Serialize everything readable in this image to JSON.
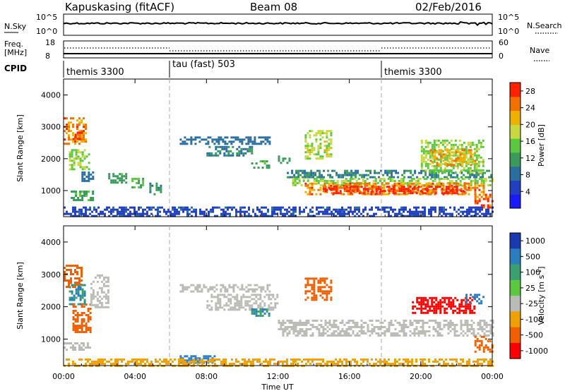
{
  "header": {
    "station": "Kapuskasing (fitACF)",
    "beam": "Beam 08",
    "date": "02/Feb/2016"
  },
  "top_panels": {
    "nsky_label": "N.Sky",
    "nsky_ticks": [
      "10^5",
      "10^0"
    ],
    "nsearch_label": "N.Search",
    "nsearch_ticks": [
      "10^5",
      "10^0"
    ],
    "freq_label": "Freq.",
    "freq_unit": "[MHz]",
    "freq_ticks": [
      "18",
      "8"
    ],
    "nave_label": "Nave",
    "nave_ticks": [
      "60",
      "0"
    ],
    "cpid_label": "CPID",
    "cpid_segments": [
      {
        "label": "themis 3300",
        "start_hour": 0,
        "end_hour": 6
      },
      {
        "label": "tau (fast) 503",
        "start_hour": 6,
        "end_hour": 18
      },
      {
        "label": "themis 3300",
        "start_hour": 18,
        "end_hour": 24
      }
    ]
  },
  "colors": {
    "power_scale": [
      "#1a1aff",
      "#2040c0",
      "#2a6ea0",
      "#3a9a5a",
      "#5cc840",
      "#c8d840",
      "#f0b000",
      "#f07000",
      "#ff2000"
    ],
    "velocity_scale": [
      "#1a3ab0",
      "#2a7ec0",
      "#3aa070",
      "#5cc840",
      "#bbbbb5",
      "#f0a000",
      "#f06000",
      "#ff0000"
    ],
    "ground_scatter": "#bbbbb5"
  },
  "chart_data": [
    {
      "type": "heatmap",
      "name": "power",
      "ylabel": "Slant Range [km]",
      "xlabel": "Time UT",
      "xlim": [
        0,
        24
      ],
      "ylim": [
        180,
        4500
      ],
      "yticks": [
        "1000",
        "2000",
        "3000",
        "4000"
      ],
      "xticks": [
        "00:00",
        "04:00",
        "08:00",
        "12:00",
        "16:00",
        "20:00",
        "00:00"
      ],
      "colorbar": {
        "label": "Power [dB]",
        "ticks": [
          "4",
          "8",
          "12",
          "16",
          "20",
          "24",
          "28"
        ],
        "range": [
          0,
          30
        ]
      },
      "patches": [
        {
          "t": [
            0.0,
            1.2
          ],
          "r": [
            2500,
            3300
          ],
          "value": 24
        },
        {
          "t": [
            0.5,
            1.0
          ],
          "r": [
            2650,
            2850
          ],
          "value": 28
        },
        {
          "t": [
            0.3,
            1.4
          ],
          "r": [
            1700,
            2300
          ],
          "value": 16
        },
        {
          "t": [
            0.4,
            1.6
          ],
          "r": [
            700,
            1000
          ],
          "value": 12
        },
        {
          "t": [
            1.0,
            1.6
          ],
          "r": [
            1300,
            1600
          ],
          "value": 8
        },
        {
          "t": [
            2.5,
            3.5
          ],
          "r": [
            1250,
            1550
          ],
          "value": 12
        },
        {
          "t": [
            3.8,
            4.5
          ],
          "r": [
            1100,
            1400
          ],
          "value": 14
        },
        {
          "t": [
            4.8,
            5.5
          ],
          "r": [
            900,
            1250
          ],
          "value": 10
        },
        {
          "t": [
            6.5,
            11.5
          ],
          "r": [
            2450,
            2700
          ],
          "value": 8
        },
        {
          "t": [
            8.0,
            10.5
          ],
          "r": [
            2100,
            2400
          ],
          "value": 10
        },
        {
          "t": [
            10.5,
            11.5
          ],
          "r": [
            1750,
            1950
          ],
          "value": 12
        },
        {
          "t": [
            12.0,
            12.6
          ],
          "r": [
            1900,
            2100
          ],
          "value": 12
        },
        {
          "t": [
            12.5,
            24.0
          ],
          "r": [
            1400,
            1650
          ],
          "value": 10
        },
        {
          "t": [
            12.8,
            24.0
          ],
          "r": [
            1150,
            1400
          ],
          "value": 16
        },
        {
          "t": [
            13.5,
            23.5
          ],
          "r": [
            900,
            1250
          ],
          "value": 24
        },
        {
          "t": [
            14.5,
            22.5
          ],
          "r": [
            950,
            1150
          ],
          "value": 28
        },
        {
          "t": [
            13.5,
            15.0
          ],
          "r": [
            2000,
            2900
          ],
          "value": 18
        },
        {
          "t": [
            20.0,
            23.5
          ],
          "r": [
            1600,
            2600
          ],
          "value": 16
        },
        {
          "t": [
            20.5,
            23.0
          ],
          "r": [
            1800,
            2300
          ],
          "value": 22
        },
        {
          "t": [
            23.0,
            24.0
          ],
          "r": [
            500,
            900
          ],
          "value": 26
        },
        {
          "t": [
            0.0,
            24.0
          ],
          "r": [
            200,
            500
          ],
          "value": 6
        }
      ]
    },
    {
      "type": "heatmap",
      "name": "velocity",
      "ylabel": "Slant Range [km]",
      "xlabel": "Time UT",
      "xlim": [
        0,
        24
      ],
      "ylim": [
        180,
        4500
      ],
      "yticks": [
        "1000",
        "2000",
        "3000",
        "4000"
      ],
      "xticks": [
        "00:00",
        "04:00",
        "08:00",
        "12:00",
        "16:00",
        "20:00",
        "00:00"
      ],
      "colorbar": {
        "label": "Velocity [m s",
        "label_sup": "-1",
        "ticks": [
          "1000",
          "500",
          "100",
          "25",
          "-25",
          "-100",
          "-500",
          "-1000"
        ]
      },
      "patches": [
        {
          "t": [
            0.0,
            1.0
          ],
          "r": [
            2600,
            3300
          ],
          "value": -200
        },
        {
          "t": [
            0.3,
            1.2
          ],
          "r": [
            2100,
            2700
          ],
          "value": 100
        },
        {
          "t": [
            0.5,
            1.5
          ],
          "r": [
            1200,
            2100
          ],
          "value": -300
        },
        {
          "t": [
            0.0,
            1.5
          ],
          "r": [
            700,
            900
          ],
          "value": 0
        },
        {
          "t": [
            1.5,
            2.5
          ],
          "r": [
            2000,
            3000
          ],
          "value": 0
        },
        {
          "t": [
            6.5,
            11.5
          ],
          "r": [
            2450,
            2700
          ],
          "value": 0
        },
        {
          "t": [
            8.0,
            12.0
          ],
          "r": [
            1900,
            2400
          ],
          "value": 0
        },
        {
          "t": [
            10.5,
            11.5
          ],
          "r": [
            1750,
            1950
          ],
          "value": 100
        },
        {
          "t": [
            12.0,
            24.0
          ],
          "r": [
            1100,
            1600
          ],
          "value": 0
        },
        {
          "t": [
            13.5,
            15.0
          ],
          "r": [
            2200,
            2900
          ],
          "value": -200
        },
        {
          "t": [
            19.5,
            23.0
          ],
          "r": [
            1800,
            2300
          ],
          "value": -600
        },
        {
          "t": [
            22.5,
            23.5
          ],
          "r": [
            2100,
            2400
          ],
          "value": 300
        },
        {
          "t": [
            23.0,
            24.0
          ],
          "r": [
            600,
            1100
          ],
          "value": -400
        },
        {
          "t": [
            6.5,
            8.5
          ],
          "r": [
            300,
            500
          ],
          "value": 150
        },
        {
          "t": [
            0.0,
            24.0
          ],
          "r": [
            200,
            400
          ],
          "value": -50
        }
      ]
    }
  ]
}
